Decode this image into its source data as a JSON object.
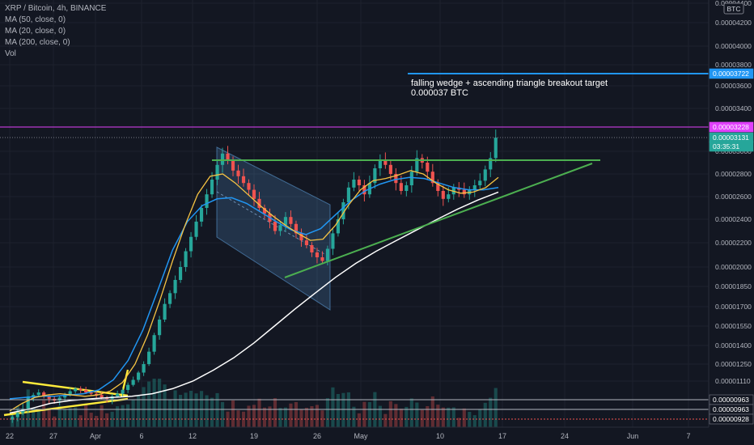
{
  "header": {
    "title": "XRP / Bitcoin, 4h, BINANCE",
    "indicators": [
      "MA (50, close, 0)",
      "MA (20, close, 0)",
      "MA (200, close, 0)",
      "Vol"
    ]
  },
  "annotation": {
    "line1": "falling wedge + ascending triangle breakout target",
    "line2": "0.000037 BTC"
  },
  "currency_badge": "BTC",
  "colors": {
    "background": "#131722",
    "up": "#26a69a",
    "down": "#ef5350",
    "ma20": "#f6c343",
    "ma50": "#2196f3",
    "ma200": "#ffffff",
    "triangle": "#4caf50",
    "target": "#2196f3",
    "wedge_fill": "#5b9bd5",
    "wedge_yellow": "#ffeb3b",
    "price_line": "#e040fb"
  },
  "chart_data": {
    "type": "candlestick",
    "symbol": "XRP / Bitcoin",
    "timeframe": "4h",
    "exchange": "BINANCE",
    "y_unit": "BTC",
    "y_tick_labels": [
      "0.00004400",
      "0.00004200",
      "0.00004000",
      "0.00003800",
      "0.00003600",
      "0.00003400",
      "0.00003000",
      "0.00002800",
      "0.00002600",
      "0.00002400",
      "0.00002200",
      "0.00002000",
      "0.00001850",
      "0.00001700",
      "0.00001550",
      "0.00001400",
      "0.00001250",
      "0.00001110",
      "0.00000963",
      "0.00000928",
      "0.00000827"
    ],
    "x_tick_labels": [
      "22",
      "27",
      "Apr",
      "6",
      "12",
      "19",
      "26",
      "May",
      "10",
      "17",
      "24",
      "Jun",
      "7"
    ],
    "price_tags": [
      {
        "label": "0.00003722",
        "role": "target"
      },
      {
        "label": "0.00003228",
        "role": "high"
      },
      {
        "label": "0.00003131",
        "role": "last"
      },
      {
        "label": "03:35:31",
        "role": "countdown"
      },
      {
        "label": "0.00000963",
        "role": "level"
      },
      {
        "label": "0.00000963",
        "role": "level"
      },
      {
        "label": "0.00000928",
        "role": "level"
      }
    ],
    "target_price": 3.722e-05,
    "breakout_high": 3.228e-05,
    "last_price": 3.131e-05,
    "resistance": 2.92e-05,
    "series_close": [
      8.9e-06,
      9.1e-06,
      9.3e-06,
      9.8e-06,
      1e-05,
      1.02e-05,
      9.9e-06,
      9.7e-06,
      9.6e-06,
      9.8e-06,
      1e-05,
      1.03e-05,
      1.05e-05,
      1.04e-05,
      1.02e-05,
      1.01e-05,
      1e-05,
      9.8e-06,
      9.7e-06,
      9.9e-06,
      1.01e-05,
      1.04e-05,
      1.08e-05,
      1.12e-05,
      1.18e-05,
      1.25e-05,
      1.35e-05,
      1.48e-05,
      1.6e-05,
      1.72e-05,
      1.8e-05,
      1.9e-05,
      2e-05,
      2.13e-05,
      2.25e-05,
      2.38e-05,
      2.5e-05,
      2.62e-05,
      2.75e-05,
      2.88e-05,
      2.98e-05,
      2.92e-05,
      2.83e-05,
      2.78e-05,
      2.72e-05,
      2.66e-05,
      2.58e-05,
      2.5e-05,
      2.45e-05,
      2.38e-05,
      2.3e-05,
      2.35e-05,
      2.42e-05,
      2.36e-05,
      2.28e-05,
      2.22e-05,
      2.18e-05,
      2.12e-05,
      2.08e-05,
      2.05e-05,
      2.15e-05,
      2.28e-05,
      2.4e-05,
      2.55e-05,
      2.68e-05,
      2.75e-05,
      2.7e-05,
      2.62e-05,
      2.72e-05,
      2.85e-05,
      2.92e-05,
      2.88e-05,
      2.8e-05,
      2.72e-05,
      2.65e-05,
      2.7e-05,
      2.82e-05,
      2.94e-05,
      2.9e-05,
      2.82e-05,
      2.72e-05,
      2.65e-05,
      2.58e-05,
      2.62e-05,
      2.68e-05,
      2.66e-05,
      2.62e-05,
      2.66e-05,
      2.7e-05,
      2.74e-05,
      2.84e-05,
      2.94e-05,
      3.13e-05
    ],
    "ma20": [
      9.2e-06,
      9.5e-06,
      9.8e-06,
      1e-05,
      1.01e-05,
      1e-05,
      9.9e-06,
      1e-05,
      1.03e-05,
      1.1e-05,
      1.25e-05,
      1.48e-05,
      1.75e-05,
      2.05e-05,
      2.35e-05,
      2.62e-05,
      2.78e-05,
      2.8e-05,
      2.72e-05,
      2.62e-05,
      2.52e-05,
      2.43e-05,
      2.35e-05,
      2.28e-05,
      2.22e-05,
      2.23e-05,
      2.35e-05,
      2.52e-05,
      2.66e-05,
      2.74e-05,
      2.76e-05,
      2.79e-05,
      2.83e-05,
      2.8e-05,
      2.72e-05,
      2.66e-05,
      2.63e-05,
      2.64e-05,
      2.68e-05,
      2.77e-05
    ],
    "ma50": [
      9.7e-06,
      9.8e-06,
      9.9e-06,
      9.9e-06,
      1e-05,
      1.01e-05,
      1.04e-05,
      1.12e-05,
      1.28e-05,
      1.52e-05,
      1.82e-05,
      2.14e-05,
      2.38e-05,
      2.52e-05,
      2.58e-05,
      2.59e-05,
      2.54e-05,
      2.46e-05,
      2.38e-05,
      2.31e-05,
      2.27e-05,
      2.32e-05,
      2.44e-05,
      2.56e-05,
      2.65e-05,
      2.71e-05,
      2.75e-05,
      2.77e-05,
      2.76e-05,
      2.72e-05,
      2.68e-05,
      2.66e-05,
      2.66e-05,
      2.68e-05
    ],
    "ma200": [
      9.1e-06,
      9.3e-06,
      9.5e-06,
      9.6e-06,
      9.7e-06,
      9.8e-06,
      9.9e-06,
      1.01e-05,
      1.05e-05,
      1.11e-05,
      1.2e-05,
      1.3e-05,
      1.42e-05,
      1.55e-05,
      1.68e-05,
      1.8e-05,
      1.92e-05,
      2.03e-05,
      2.13e-05,
      2.22e-05,
      2.31e-05,
      2.4e-05,
      2.49e-05,
      2.57e-05,
      2.64e-05
    ]
  }
}
